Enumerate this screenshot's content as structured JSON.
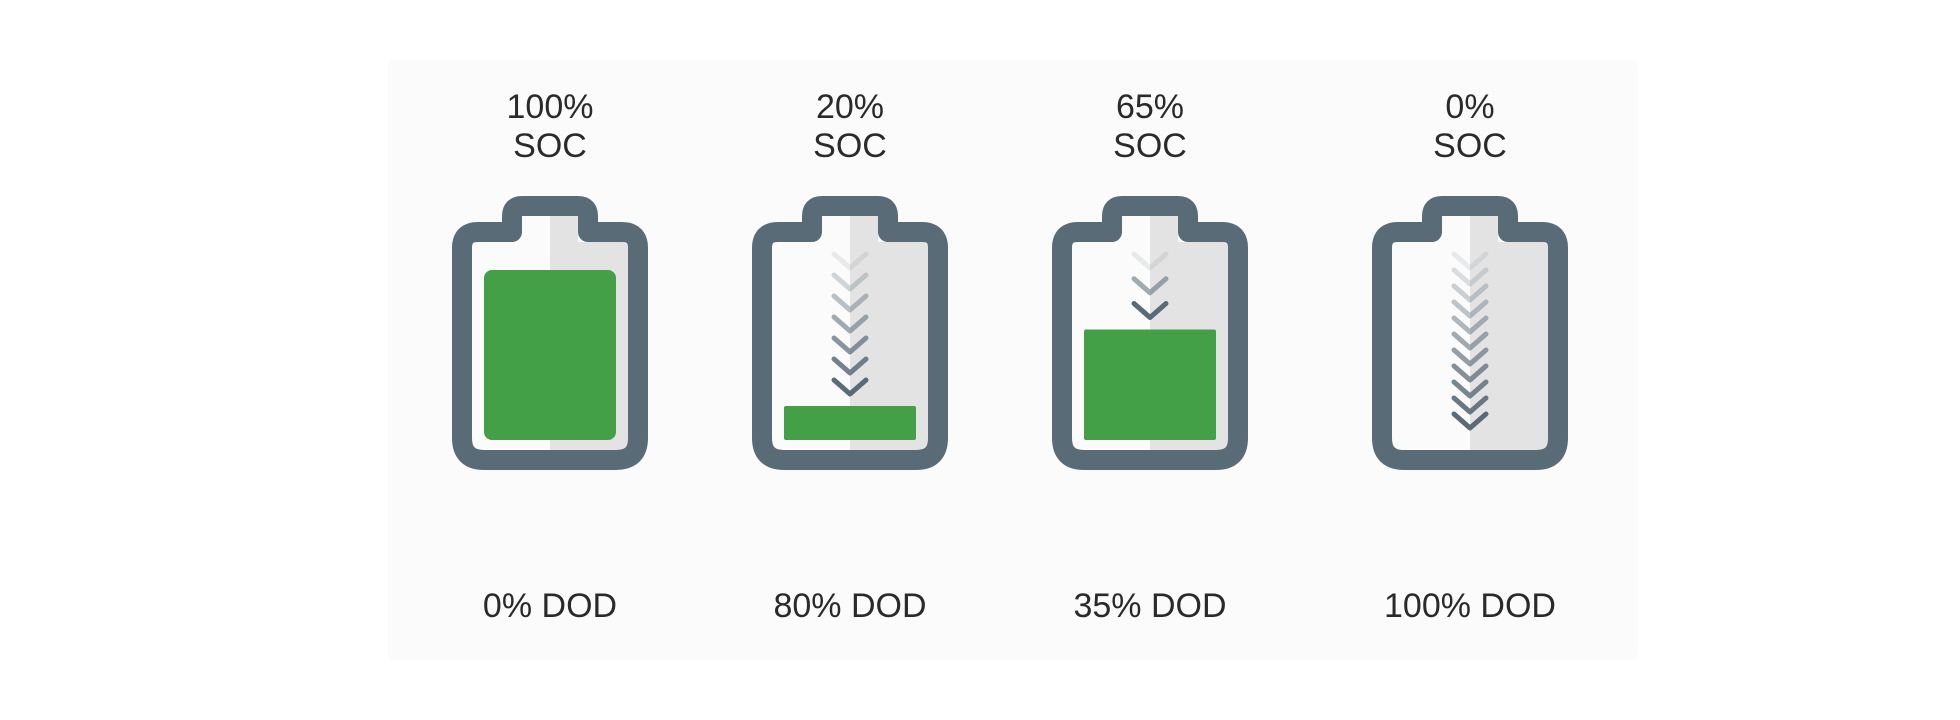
{
  "colors": {
    "casing": "#5a6b78",
    "charge": "#43a047",
    "inner_bg": "#ffffff",
    "inner_shade": "#e3e3e3",
    "text": "#2a2a2a"
  },
  "batteries": [
    {
      "soc_value": "100%",
      "soc_unit": "SOC",
      "dod_label": "0% DOD",
      "charge_level": 1.0,
      "arrow_count": 0
    },
    {
      "soc_value": "20%",
      "soc_unit": "SOC",
      "dod_label": "80% DOD",
      "charge_level": 0.2,
      "arrow_count": 7
    },
    {
      "soc_value": "65%",
      "soc_unit": "SOC",
      "dod_label": "35% DOD",
      "charge_level": 0.65,
      "arrow_count": 3
    },
    {
      "soc_value": "0%",
      "soc_unit": "SOC",
      "dod_label": "100% DOD",
      "charge_level": 0.0,
      "arrow_count": 11
    }
  ]
}
